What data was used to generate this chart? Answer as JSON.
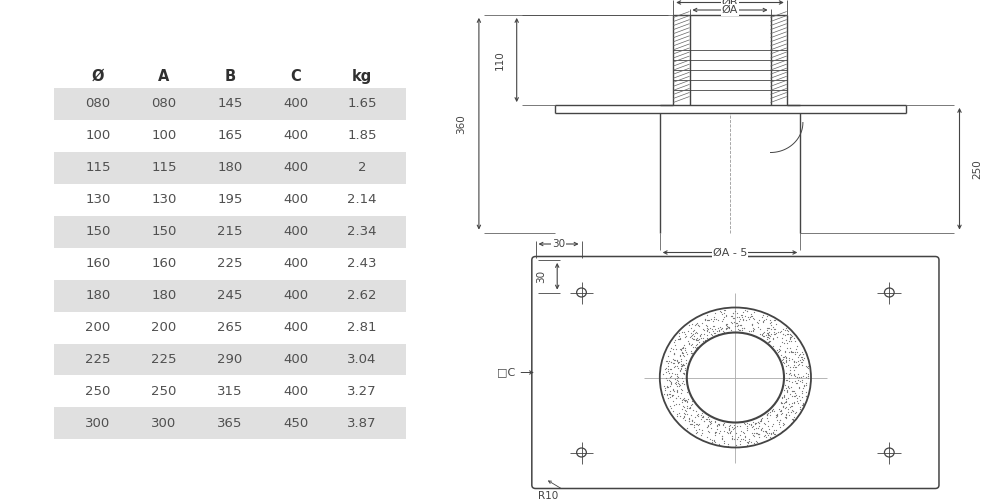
{
  "table_headers": [
    "Ø",
    "A",
    "B",
    "C",
    "kg"
  ],
  "table_rows": [
    [
      "080",
      "080",
      "145",
      "400",
      "1.65"
    ],
    [
      "100",
      "100",
      "165",
      "400",
      "1.85"
    ],
    [
      "115",
      "115",
      "180",
      "400",
      "2"
    ],
    [
      "130",
      "130",
      "195",
      "400",
      "2.14"
    ],
    [
      "150",
      "150",
      "215",
      "400",
      "2.34"
    ],
    [
      "160",
      "160",
      "225",
      "400",
      "2.43"
    ],
    [
      "180",
      "180",
      "245",
      "400",
      "2.62"
    ],
    [
      "200",
      "200",
      "265",
      "400",
      "2.81"
    ],
    [
      "225",
      "225",
      "290",
      "400",
      "3.04"
    ],
    [
      "250",
      "250",
      "315",
      "400",
      "3.27"
    ],
    [
      "300",
      "300",
      "365",
      "450",
      "3.87"
    ]
  ],
  "shaded_rows": [
    0,
    2,
    4,
    6,
    8,
    10
  ],
  "row_bg_color": "#e0e0e0",
  "white_color": "#ffffff",
  "text_color": "#505050",
  "header_color": "#303030",
  "bg_color": "#ffffff",
  "line_color": "#444444"
}
